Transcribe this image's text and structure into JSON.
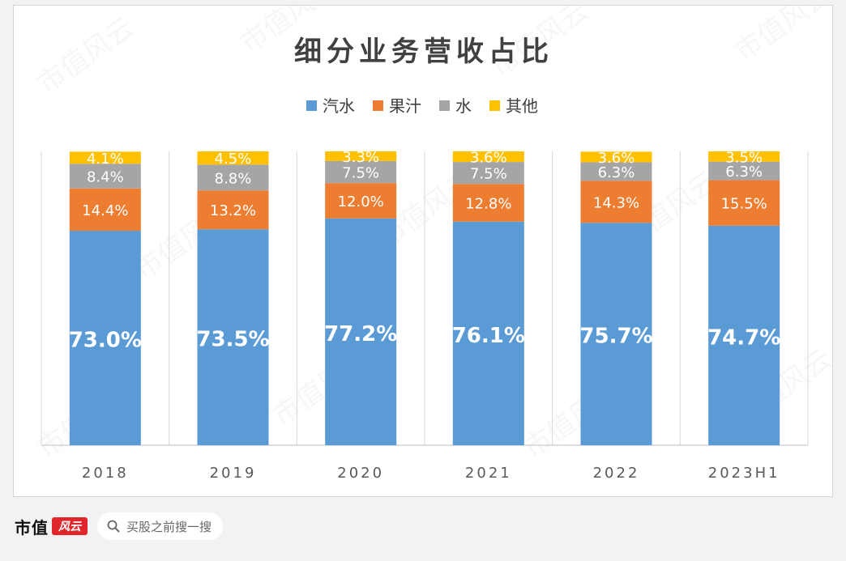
{
  "chart_data": {
    "type": "bar",
    "stacked": true,
    "title": "细分业务营收占比",
    "categories": [
      "2018",
      "2019",
      "2020",
      "2021",
      "2022",
      "2023H1"
    ],
    "series": [
      {
        "name": "汽水",
        "color": "#5b9bd5",
        "values": [
          73.0,
          73.5,
          77.2,
          76.1,
          75.7,
          74.7
        ],
        "labels": [
          "73.0%",
          "73.5%",
          "77.2%",
          "76.1%",
          "75.7%",
          "74.7%"
        ]
      },
      {
        "name": "果汁",
        "color": "#ed7d31",
        "values": [
          14.4,
          13.2,
          12.0,
          12.8,
          14.3,
          15.5
        ],
        "labels": [
          "14.4%",
          "13.2%",
          "12.0%",
          "12.8%",
          "14.3%",
          "15.5%"
        ]
      },
      {
        "name": "水",
        "color": "#a5a5a5",
        "values": [
          8.4,
          8.8,
          7.5,
          7.5,
          6.3,
          6.3
        ],
        "labels": [
          "8.4%",
          "8.8%",
          "7.5%",
          "7.5%",
          "6.3%",
          "6.3%"
        ]
      },
      {
        "name": "其他",
        "color": "#ffc000",
        "values": [
          4.1,
          4.5,
          3.3,
          3.6,
          3.6,
          3.5
        ],
        "labels": [
          "4.1%",
          "4.5%",
          "3.3%",
          "3.6%",
          "3.6%",
          "3.5%"
        ]
      }
    ],
    "ylim": [
      0,
      100
    ],
    "legend_position": "top",
    "grid": false
  },
  "footer": {
    "brand_name": "市值",
    "brand_logo": "风云",
    "search_text": "买股之前搜一搜",
    "search_icon": "search-icon"
  },
  "watermark": "市值风云"
}
